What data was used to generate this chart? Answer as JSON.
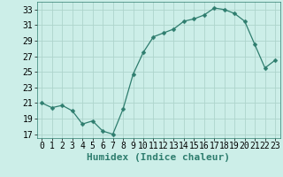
{
  "x": [
    0,
    1,
    2,
    3,
    4,
    5,
    6,
    7,
    8,
    9,
    10,
    11,
    12,
    13,
    14,
    15,
    16,
    17,
    18,
    19,
    20,
    21,
    22,
    23
  ],
  "y": [
    21.0,
    20.4,
    20.7,
    20.0,
    18.3,
    18.7,
    17.4,
    17.0,
    20.2,
    24.7,
    27.5,
    29.5,
    30.0,
    30.5,
    31.5,
    31.8,
    32.3,
    33.2,
    33.0,
    32.5,
    31.5,
    28.5,
    25.5,
    26.5
  ],
  "line_color": "#2e7d6e",
  "marker": "D",
  "marker_size": 2.5,
  "bg_color": "#cceee8",
  "grid_color": "#aed4cc",
  "xlabel": "Humidex (Indice chaleur)",
  "xlabel_fontsize": 8,
  "tick_fontsize": 7,
  "ylim": [
    16.5,
    34.0
  ],
  "xlim": [
    -0.5,
    23.5
  ],
  "yticks": [
    17,
    19,
    21,
    23,
    25,
    27,
    29,
    31,
    33
  ],
  "xticks": [
    0,
    1,
    2,
    3,
    4,
    5,
    6,
    7,
    8,
    9,
    10,
    11,
    12,
    13,
    14,
    15,
    16,
    17,
    18,
    19,
    20,
    21,
    22,
    23
  ]
}
